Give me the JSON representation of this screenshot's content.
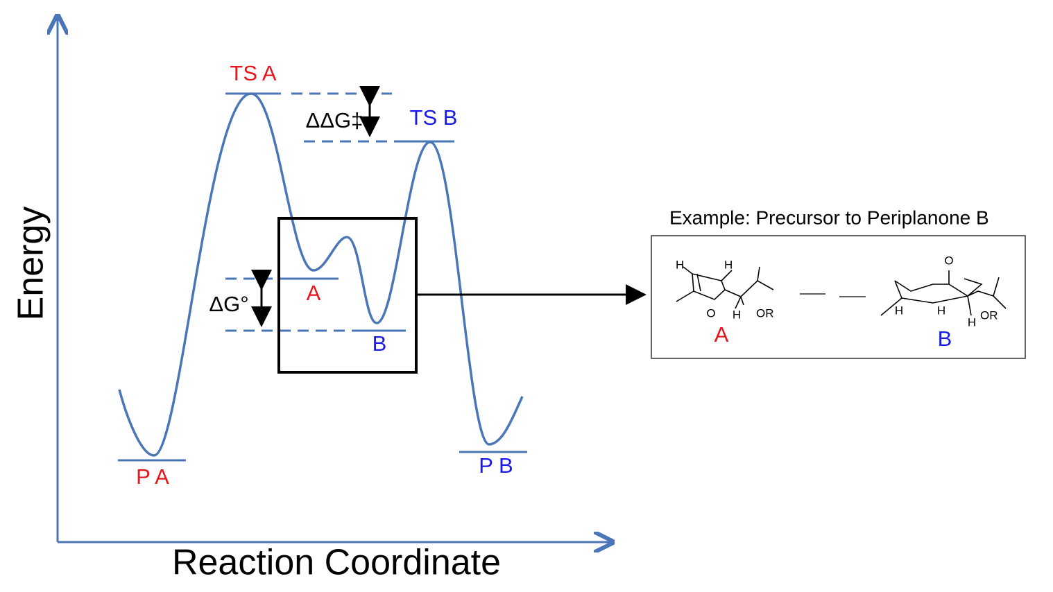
{
  "axes": {
    "y_label": "Energy",
    "x_label": "Reaction Coordinate"
  },
  "states": {
    "ts_a": "TS A",
    "ts_b": "TS B",
    "a": "A",
    "b": "B",
    "p_a": "P A",
    "p_b": "P B"
  },
  "annotations": {
    "ddg": "ΔΔG‡",
    "dg": "ΔG°"
  },
  "inset": {
    "title": "Example: Precursor to Periplanone B",
    "molecule_a": {
      "label": "A",
      "atoms": [
        "H",
        "H",
        "O",
        "H",
        "OR"
      ]
    },
    "molecule_b": {
      "label": "B",
      "atoms": [
        "O",
        "H",
        "H",
        "H",
        "OR"
      ]
    }
  }
}
